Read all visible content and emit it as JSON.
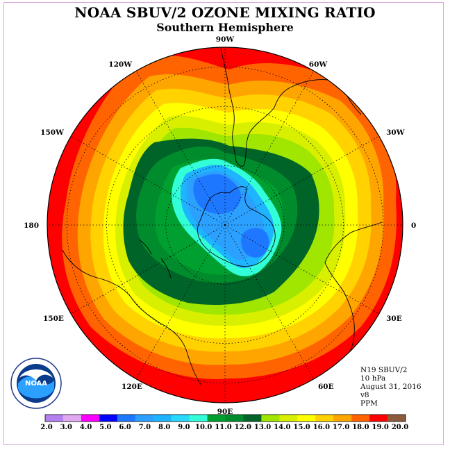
{
  "title": "NOAA SBUV/2 OZONE MIXING RATIO",
  "subtitle": "Southern Hemisphere",
  "longitude_labels": [
    "0",
    "30W",
    "60W",
    "90W",
    "120W",
    "150W",
    "180",
    "150E",
    "120E",
    "90E",
    "60E",
    "30E"
  ],
  "info": {
    "satellite": "N19 SBUV/2",
    "level": "10 hPa",
    "date": "August 31, 2016",
    "version": "v8",
    "units": "PPM"
  },
  "logo_text": "NOAA",
  "colorbar": {
    "ticks": [
      "2.0",
      "3.0",
      "4.0",
      "5.0",
      "6.0",
      "7.0",
      "8.0",
      "9.0",
      "10.0",
      "11.0",
      "12.0",
      "13.0",
      "14.0",
      "15.0",
      "16.0",
      "17.0",
      "18.0",
      "19.0",
      "20.0"
    ],
    "colors": [
      "#b480f0",
      "#e0a8f0",
      "#ff00ff",
      "#0000ff",
      "#1e78ff",
      "#2ca0ff",
      "#1eb4ff",
      "#28d8ff",
      "#32ffd8",
      "#00a030",
      "#008c2c",
      "#006428",
      "#a0e600",
      "#d8f000",
      "#ffff00",
      "#ffd200",
      "#ffa500",
      "#ff6400",
      "#ff0000",
      "#8c5a3c"
    ]
  }
}
